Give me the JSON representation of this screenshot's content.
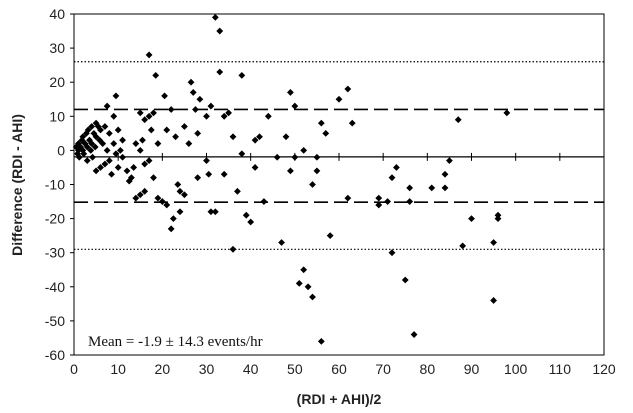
{
  "chart_data": {
    "type": "scatter",
    "xlabel": "(RDI + AHI)/2",
    "ylabel": "Difference (RDI - AHI)",
    "xlim": [
      0,
      120
    ],
    "ylim": [
      -60,
      40
    ],
    "x_ticks": [
      0,
      10,
      20,
      30,
      40,
      50,
      60,
      70,
      80,
      90,
      100,
      110,
      120
    ],
    "y_ticks": [
      -60,
      -50,
      -40,
      -30,
      -20,
      -10,
      0,
      10,
      20,
      30,
      40
    ],
    "grid": false,
    "marker": "diamond",
    "marker_color": "#000000",
    "reference_lines": [
      {
        "y": 26,
        "style": "dotted"
      },
      {
        "y": 12,
        "style": "dashed"
      },
      {
        "y": -1.9,
        "style": "solid"
      },
      {
        "y": -15.2,
        "style": "dashed"
      },
      {
        "y": -29,
        "style": "dotted"
      }
    ],
    "annotation": "Mean = -1.9 ± 14.3 events/hr",
    "points": [
      [
        0.5,
        1
      ],
      [
        0.8,
        -1
      ],
      [
        1,
        2
      ],
      [
        1,
        0
      ],
      [
        1.2,
        -2
      ],
      [
        1.5,
        1
      ],
      [
        1.8,
        3
      ],
      [
        2,
        0
      ],
      [
        2,
        4
      ],
      [
        2.2,
        -1
      ],
      [
        2.5,
        2
      ],
      [
        2.8,
        5
      ],
      [
        3,
        1
      ],
      [
        3,
        -3
      ],
      [
        3.2,
        6
      ],
      [
        3.5,
        3
      ],
      [
        3.8,
        0
      ],
      [
        4,
        7
      ],
      [
        4,
        2
      ],
      [
        4.2,
        -2
      ],
      [
        4.5,
        5
      ],
      [
        4.8,
        1
      ],
      [
        5,
        8
      ],
      [
        5,
        4
      ],
      [
        5,
        -6
      ],
      [
        5.5,
        7
      ],
      [
        5.8,
        3
      ],
      [
        6,
        6
      ],
      [
        6,
        -5
      ],
      [
        6.5,
        2
      ],
      [
        7,
        7
      ],
      [
        7,
        -4
      ],
      [
        7.5,
        13
      ],
      [
        7.5,
        0
      ],
      [
        8,
        5
      ],
      [
        8,
        -3
      ],
      [
        8.5,
        -7
      ],
      [
        9,
        10
      ],
      [
        9,
        2
      ],
      [
        9.5,
        16
      ],
      [
        9.5,
        -1
      ],
      [
        10,
        6
      ],
      [
        10,
        -5
      ],
      [
        10.5,
        0
      ],
      [
        11,
        3
      ],
      [
        11,
        -2
      ],
      [
        12,
        -6
      ],
      [
        12.5,
        -9
      ],
      [
        13,
        -8
      ],
      [
        13.5,
        -5
      ],
      [
        14,
        2
      ],
      [
        14,
        -14
      ],
      [
        15,
        11
      ],
      [
        15,
        0
      ],
      [
        15,
        -13
      ],
      [
        15.5,
        3
      ],
      [
        16,
        9
      ],
      [
        16,
        -4
      ],
      [
        16,
        -12
      ],
      [
        17,
        28
      ],
      [
        17,
        10
      ],
      [
        17,
        -3
      ],
      [
        17.5,
        6
      ],
      [
        18,
        11
      ],
      [
        18,
        -8
      ],
      [
        18.5,
        22
      ],
      [
        19,
        2
      ],
      [
        19,
        -14
      ],
      [
        20,
        -15
      ],
      [
        20.5,
        16
      ],
      [
        21,
        6
      ],
      [
        21,
        -16
      ],
      [
        22,
        12
      ],
      [
        22,
        -23
      ],
      [
        22.5,
        -20
      ],
      [
        23,
        4
      ],
      [
        23.5,
        -10
      ],
      [
        24,
        -12
      ],
      [
        24,
        -18
      ],
      [
        25,
        7
      ],
      [
        25,
        -13
      ],
      [
        26,
        2
      ],
      [
        26.5,
        20
      ],
      [
        27,
        17
      ],
      [
        27.5,
        12
      ],
      [
        28,
        5
      ],
      [
        28,
        -8
      ],
      [
        28.5,
        15
      ],
      [
        30,
        10
      ],
      [
        30,
        -3
      ],
      [
        30.5,
        -7
      ],
      [
        31,
        13
      ],
      [
        31,
        -18
      ],
      [
        32,
        39
      ],
      [
        32,
        -18
      ],
      [
        33,
        35
      ],
      [
        33,
        23
      ],
      [
        34,
        10
      ],
      [
        34,
        -7
      ],
      [
        35,
        11
      ],
      [
        36,
        4
      ],
      [
        36,
        -29
      ],
      [
        37,
        -12
      ],
      [
        38,
        22
      ],
      [
        38,
        -1
      ],
      [
        39,
        -19
      ],
      [
        40,
        -21
      ],
      [
        41,
        3
      ],
      [
        41,
        -5
      ],
      [
        42,
        4
      ],
      [
        43,
        -15
      ],
      [
        44,
        10
      ],
      [
        46,
        -2
      ],
      [
        47,
        -27
      ],
      [
        48,
        4
      ],
      [
        49,
        17
      ],
      [
        49,
        -6
      ],
      [
        50,
        -2
      ],
      [
        50,
        13
      ],
      [
        51,
        -39
      ],
      [
        52,
        -35
      ],
      [
        52,
        0
      ],
      [
        53,
        -40
      ],
      [
        54,
        -10
      ],
      [
        54,
        -43
      ],
      [
        55,
        -2
      ],
      [
        55,
        -6
      ],
      [
        56,
        8
      ],
      [
        56,
        -56
      ],
      [
        57,
        5
      ],
      [
        58,
        -25
      ],
      [
        60,
        15
      ],
      [
        62,
        -14
      ],
      [
        62,
        18
      ],
      [
        63,
        8
      ],
      [
        69,
        -14
      ],
      [
        69,
        -16
      ],
      [
        71,
        -15
      ],
      [
        72,
        -8
      ],
      [
        72,
        -30
      ],
      [
        73,
        -5
      ],
      [
        75,
        -38
      ],
      [
        76,
        -11
      ],
      [
        76,
        -15
      ],
      [
        77,
        -54
      ],
      [
        81,
        -11
      ],
      [
        84,
        -11
      ],
      [
        84,
        -7
      ],
      [
        85,
        -3
      ],
      [
        87,
        9
      ],
      [
        88,
        -28
      ],
      [
        90,
        -20
      ],
      [
        95,
        -27
      ],
      [
        95,
        -44
      ],
      [
        96,
        -19
      ],
      [
        96,
        -20
      ],
      [
        98,
        11
      ]
    ]
  }
}
